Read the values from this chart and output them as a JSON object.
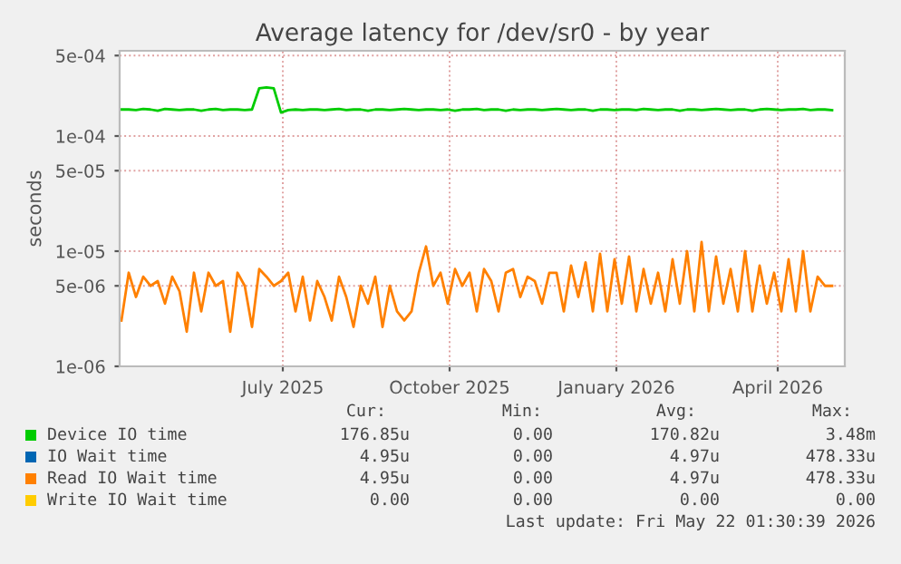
{
  "chart_data": {
    "type": "line",
    "title": "Average latency for /dev/sr0 - by year",
    "ylabel": "seconds",
    "log": "y",
    "grid": true,
    "legend": "bottom",
    "marker": "none",
    "line_style": "solid",
    "xlim": [
      "2025-04-17",
      "2026-05-22"
    ],
    "xticks": [
      {
        "value": "2025-07-16",
        "label": "July 2025"
      },
      {
        "value": "2025-10-16",
        "label": "October 2025"
      },
      {
        "value": "2026-01-16",
        "label": "January 2026"
      },
      {
        "value": "2026-04-15",
        "label": "April 2026"
      }
    ],
    "ylim": [
      1e-06,
      0.00055
    ],
    "yticks": [
      {
        "value": 1e-06,
        "label": "1e-06"
      },
      {
        "value": 5e-06,
        "label": "5e-06"
      },
      {
        "value": 1e-05,
        "label": "1e-05"
      },
      {
        "value": 5e-05,
        "label": "5e-05"
      },
      {
        "value": 0.0001,
        "label": "1e-04"
      },
      {
        "value": 0.0005,
        "label": "5e-04"
      }
    ],
    "x": [
      "2025-04-18",
      "2025-04-22",
      "2025-04-26",
      "2025-04-30",
      "2025-05-04",
      "2025-05-08",
      "2025-05-12",
      "2025-05-16",
      "2025-05-20",
      "2025-05-24",
      "2025-05-28",
      "2025-06-01",
      "2025-06-05",
      "2025-06-09",
      "2025-06-13",
      "2025-06-17",
      "2025-06-21",
      "2025-06-25",
      "2025-06-29",
      "2025-07-03",
      "2025-07-07",
      "2025-07-11",
      "2025-07-15",
      "2025-07-19",
      "2025-07-23",
      "2025-07-27",
      "2025-07-31",
      "2025-08-04",
      "2025-08-08",
      "2025-08-12",
      "2025-08-16",
      "2025-08-20",
      "2025-08-24",
      "2025-08-28",
      "2025-09-01",
      "2025-09-05",
      "2025-09-09",
      "2025-09-13",
      "2025-09-17",
      "2025-09-21",
      "2025-09-25",
      "2025-09-29",
      "2025-10-03",
      "2025-10-07",
      "2025-10-11",
      "2025-10-15",
      "2025-10-19",
      "2025-10-23",
      "2025-10-27",
      "2025-10-31",
      "2025-11-04",
      "2025-11-08",
      "2025-11-12",
      "2025-11-16",
      "2025-11-20",
      "2025-11-24",
      "2025-11-28",
      "2025-12-02",
      "2025-12-06",
      "2025-12-10",
      "2025-12-14",
      "2025-12-18",
      "2025-12-22",
      "2025-12-26",
      "2025-12-30",
      "2026-01-03",
      "2026-01-07",
      "2026-01-11",
      "2026-01-15",
      "2026-01-19",
      "2026-01-23",
      "2026-01-27",
      "2026-01-31",
      "2026-02-04",
      "2026-02-08",
      "2026-02-12",
      "2026-02-16",
      "2026-02-20",
      "2026-02-24",
      "2026-02-28",
      "2026-03-04",
      "2026-03-08",
      "2026-03-12",
      "2026-03-16",
      "2026-03-20",
      "2026-03-24",
      "2026-03-28",
      "2026-04-01",
      "2026-04-05",
      "2026-04-09",
      "2026-04-13",
      "2026-04-17",
      "2026-04-21",
      "2026-04-25",
      "2026-04-29",
      "2026-05-03",
      "2026-05-07",
      "2026-05-11",
      "2026-05-15"
    ],
    "series": [
      {
        "name": "Device IO time",
        "color": "#00cc00",
        "values": [
          0.00017,
          0.00017,
          0.000168,
          0.000172,
          0.00017,
          0.000166,
          0.000172,
          0.00017,
          0.000168,
          0.00017,
          0.00017,
          0.000166,
          0.00017,
          0.000172,
          0.000168,
          0.00017,
          0.00017,
          0.000168,
          0.00017,
          0.00026,
          0.000265,
          0.00026,
          0.00016,
          0.000168,
          0.00017,
          0.000168,
          0.00017,
          0.00017,
          0.000168,
          0.00017,
          0.000172,
          0.000168,
          0.00017,
          0.00017,
          0.000166,
          0.00017,
          0.00017,
          0.000168,
          0.00017,
          0.000172,
          0.00017,
          0.000168,
          0.00017,
          0.00017,
          0.000168,
          0.00017,
          0.000166,
          0.00017,
          0.00017,
          0.000172,
          0.000168,
          0.00017,
          0.00017,
          0.000166,
          0.00017,
          0.000168,
          0.00017,
          0.00017,
          0.000168,
          0.00017,
          0.000172,
          0.00017,
          0.000168,
          0.00017,
          0.00017,
          0.000166,
          0.00017,
          0.00017,
          0.000168,
          0.00017,
          0.00017,
          0.000168,
          0.000172,
          0.00017,
          0.000168,
          0.00017,
          0.00017,
          0.000166,
          0.00017,
          0.00017,
          0.000168,
          0.00017,
          0.000172,
          0.00017,
          0.000168,
          0.00017,
          0.00017,
          0.000166,
          0.00017,
          0.000172,
          0.00017,
          0.000168,
          0.00017,
          0.00017,
          0.000172,
          0.000168,
          0.00017,
          0.00017,
          0.000168
        ]
      },
      {
        "name": "IO Wait time",
        "color": "#0066b3",
        "values": [
          null,
          null,
          null,
          null,
          null,
          null,
          null,
          null,
          null,
          null,
          null,
          null,
          null,
          null,
          null,
          null,
          null,
          null,
          null,
          null,
          null,
          null,
          null,
          null,
          null,
          null,
          null,
          null,
          null,
          null,
          null,
          null,
          null,
          null,
          null,
          null,
          null,
          null,
          null,
          null,
          null,
          null,
          null,
          null,
          null,
          null,
          null,
          null,
          null,
          null,
          null,
          null,
          null,
          null,
          null,
          null,
          null,
          null,
          null,
          null,
          null,
          null,
          null,
          null,
          null,
          null,
          null,
          null,
          null,
          null,
          null,
          null,
          null,
          null,
          null,
          null,
          null,
          null,
          null,
          null,
          null,
          null,
          null,
          null,
          null,
          null,
          null,
          null,
          null,
          null,
          null,
          null,
          null,
          null,
          null,
          null,
          null,
          null,
          null
        ]
      },
      {
        "name": "Read IO Wait time",
        "color": "#ff8000",
        "values": [
          2.5e-06,
          6.5e-06,
          4e-06,
          6e-06,
          5e-06,
          5.5e-06,
          3.5e-06,
          6e-06,
          4.5e-06,
          2e-06,
          6.5e-06,
          3e-06,
          6.5e-06,
          5e-06,
          5.5e-06,
          2e-06,
          6.5e-06,
          5e-06,
          2.2e-06,
          7e-06,
          6e-06,
          5e-06,
          5.5e-06,
          6.5e-06,
          3e-06,
          6e-06,
          2.5e-06,
          5.5e-06,
          4e-06,
          2.5e-06,
          6e-06,
          4e-06,
          2.2e-06,
          5e-06,
          3.5e-06,
          6e-06,
          2.2e-06,
          5e-06,
          3e-06,
          2.5e-06,
          3e-06,
          6.5e-06,
          1.1e-05,
          5e-06,
          6.5e-06,
          3.5e-06,
          7e-06,
          5e-06,
          6.5e-06,
          3e-06,
          7e-06,
          5.5e-06,
          3e-06,
          6.5e-06,
          7e-06,
          4e-06,
          6e-06,
          5.5e-06,
          3.5e-06,
          6.5e-06,
          6.5e-06,
          3e-06,
          7.5e-06,
          4e-06,
          8e-06,
          3e-06,
          9.5e-06,
          3e-06,
          8.5e-06,
          3.5e-06,
          9e-06,
          3e-06,
          7e-06,
          3.5e-06,
          6.5e-06,
          3e-06,
          8.5e-06,
          3.5e-06,
          1e-05,
          3e-06,
          1.2e-05,
          3e-06,
          9e-06,
          3.5e-06,
          7e-06,
          3e-06,
          1e-05,
          3e-06,
          7.5e-06,
          3.5e-06,
          6.5e-06,
          3e-06,
          8.5e-06,
          3e-06,
          1e-05,
          3e-06,
          6e-06,
          5e-06,
          5e-06
        ]
      },
      {
        "name": "Write IO Wait time",
        "color": "#ffcc00",
        "values": [
          null,
          null,
          null,
          null,
          null,
          null,
          null,
          null,
          null,
          null,
          null,
          null,
          null,
          null,
          null,
          null,
          null,
          null,
          null,
          null,
          null,
          null,
          null,
          null,
          null,
          null,
          null,
          null,
          null,
          null,
          null,
          null,
          null,
          null,
          null,
          null,
          null,
          null,
          null,
          null,
          null,
          null,
          null,
          null,
          null,
          null,
          null,
          null,
          null,
          null,
          null,
          null,
          null,
          null,
          null,
          null,
          null,
          null,
          null,
          null,
          null,
          null,
          null,
          null,
          null,
          null,
          null,
          null,
          null,
          null,
          null,
          null,
          null,
          null,
          null,
          null,
          null,
          null,
          null,
          null,
          null,
          null,
          null,
          null,
          null,
          null,
          null,
          null,
          null,
          null,
          null,
          null,
          null,
          null,
          null,
          null,
          null,
          null,
          null
        ]
      }
    ],
    "annotations": [
      "Cur:",
      "Min:",
      "Avg:",
      "Max:",
      "176.85u",
      "0.00",
      "170.82u",
      "3.48m",
      "4.95u",
      "0.00",
      "4.97u",
      "478.33u",
      "4.95u",
      "0.00",
      "4.97u",
      "478.33u",
      "0.00",
      "0.00",
      "0.00",
      "0.00",
      "Last update: Fri May 22 01:30:39 2026"
    ]
  }
}
